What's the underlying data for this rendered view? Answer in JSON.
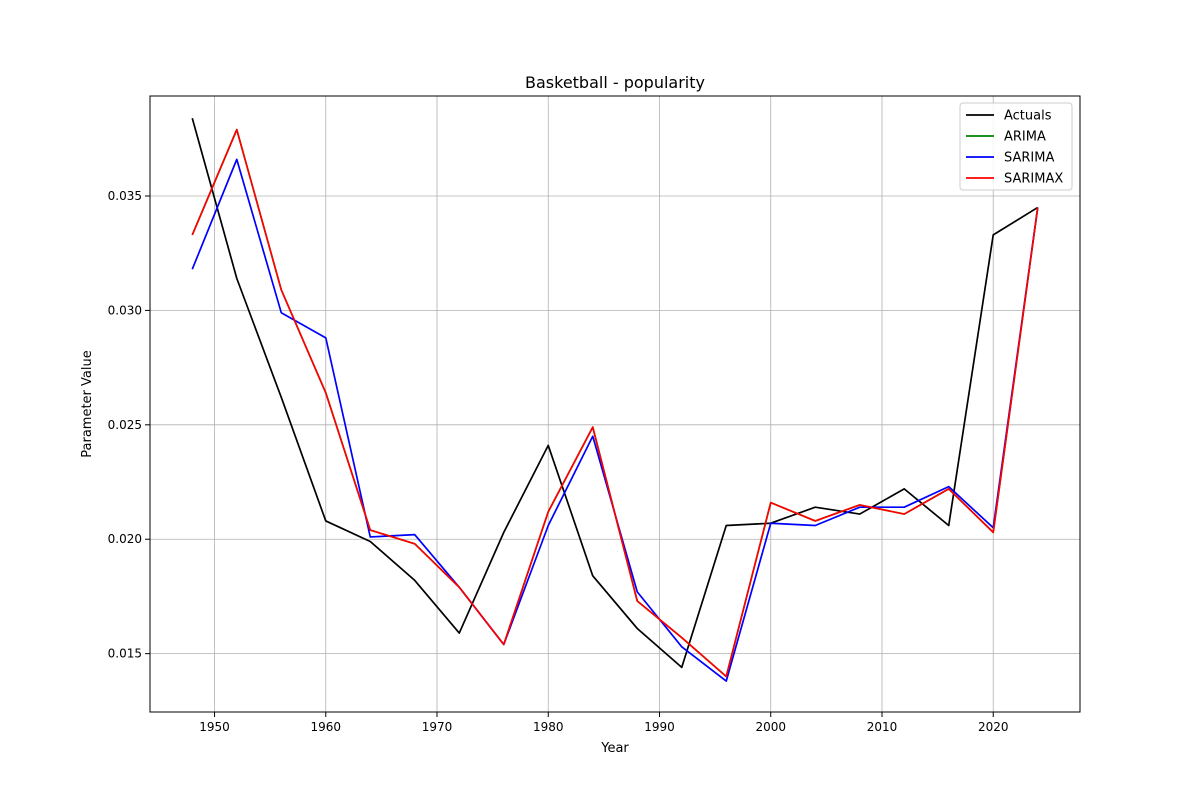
{
  "chart_data": {
    "type": "line",
    "title": "Basketball - popularity",
    "xlabel": "Year",
    "ylabel": "Parameter Value",
    "xlim": [
      1944.2,
      2027.8
    ],
    "ylim": [
      0.01245,
      0.03937
    ],
    "x_ticks": [
      1950,
      1960,
      1970,
      1980,
      1990,
      2000,
      2010,
      2020
    ],
    "x_tick_labels": [
      "1950",
      "1960",
      "1970",
      "1980",
      "1990",
      "2000",
      "2010",
      "2020"
    ],
    "y_ticks": [
      0.015,
      0.02,
      0.025,
      0.03,
      0.035
    ],
    "y_tick_labels": [
      "0.015",
      "0.020",
      "0.025",
      "0.030",
      "0.035"
    ],
    "grid": true,
    "legend_position": "top-right",
    "x": [
      1948,
      1952,
      1956,
      1960,
      1964,
      1968,
      1972,
      1976,
      1980,
      1984,
      1988,
      1992,
      1996,
      2000,
      2004,
      2008,
      2012,
      2016,
      2020,
      2024
    ],
    "series": [
      {
        "name": "Actuals",
        "color": "#000000",
        "values": [
          0.0384,
          0.0314,
          0.0262,
          0.0208,
          0.0199,
          0.0182,
          0.0159,
          0.0203,
          0.0241,
          0.0184,
          0.0161,
          0.0144,
          0.0206,
          0.0207,
          0.0214,
          0.0211,
          0.0222,
          0.0206,
          0.0333,
          0.0345
        ]
      },
      {
        "name": "ARIMA",
        "color": "#008000",
        "values": [
          0.0333,
          0.0379,
          0.0309,
          0.0264,
          0.0204,
          0.0198,
          0.0179,
          0.0154,
          0.0212,
          0.0249,
          0.0173,
          0.0157,
          0.014,
          0.0216,
          0.0208,
          0.0215,
          0.0211,
          0.0222,
          0.0203,
          0.0345
        ]
      },
      {
        "name": "SARIMA",
        "color": "#0000ff",
        "values": [
          0.0318,
          0.0366,
          0.0299,
          0.0288,
          0.0201,
          0.0202,
          0.0179,
          0.0154,
          0.0206,
          0.0245,
          0.0177,
          0.0153,
          0.0138,
          0.0207,
          0.0206,
          0.0214,
          0.0214,
          0.0223,
          0.0205,
          0.0345
        ]
      },
      {
        "name": "SARIMAX",
        "color": "#ff0000",
        "values": [
          0.0333,
          0.0379,
          0.0309,
          0.0264,
          0.0204,
          0.0198,
          0.0179,
          0.0154,
          0.0212,
          0.0249,
          0.0173,
          0.0157,
          0.014,
          0.0216,
          0.0208,
          0.0215,
          0.0211,
          0.0222,
          0.0203,
          0.0345
        ]
      }
    ]
  }
}
